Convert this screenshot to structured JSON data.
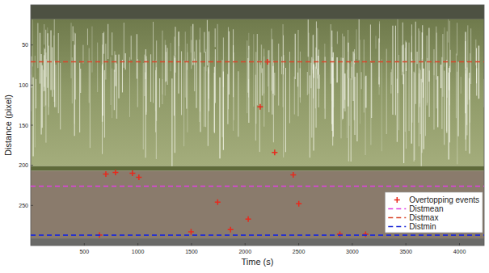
{
  "chart_data": {
    "type": "scatter",
    "x_label": "Time (s)",
    "y_label": "Distance (pixel)",
    "xlim": [
      0,
      4230
    ],
    "ylim": [
      300,
      0
    ],
    "xticks": [
      500,
      1000,
      1500,
      2000,
      2500,
      3000,
      3500,
      4000
    ],
    "yticks": [
      50,
      100,
      150,
      200,
      250
    ],
    "legend": "lower right",
    "series": [
      {
        "name": "Overtopping events",
        "type": "scatter",
        "marker": "plus",
        "color": "#e8291c",
        "x": [
          641,
          701,
          791,
          949,
          1009,
          1496,
          1744,
          1864,
          2029,
          2141,
          2209,
          2276,
          2449,
          2501,
          2884,
          3124
        ],
        "values": [
          287,
          211,
          209,
          210,
          215,
          283,
          246,
          280,
          267,
          127,
          71,
          184,
          212,
          248,
          286,
          286
        ]
      },
      {
        "name": "Distmean",
        "type": "hline",
        "line_style": "dashed",
        "color": "#e040e0",
        "values": [
          226
        ]
      },
      {
        "name": "Distmax",
        "type": "hline",
        "line_style": "dashed",
        "color": "#d9452b",
        "values": [
          71
        ]
      },
      {
        "name": "Distmin",
        "type": "hline",
        "line_style": "dashed",
        "color": "#1e2bd6",
        "values": [
          287
        ]
      }
    ]
  }
}
